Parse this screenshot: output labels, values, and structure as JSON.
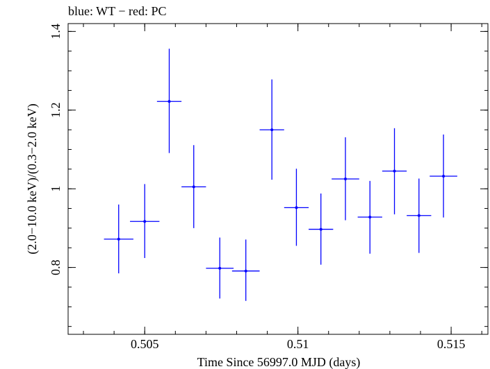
{
  "chart_data": {
    "type": "scatter",
    "title": "blue: WT − red: PC",
    "xlabel": "Time Since 56997.0 MJD (days)",
    "ylabel": "(2.0−10.0 keV)/(0.3−2.0 keV)",
    "xlim": [
      0.5025,
      0.5162
    ],
    "ylim": [
      0.63,
      1.42
    ],
    "xticks": [
      {
        "value": 0.505,
        "label": "0.505"
      },
      {
        "value": 0.51,
        "label": "0.51"
      },
      {
        "value": 0.515,
        "label": "0.515"
      }
    ],
    "yticks": [
      {
        "value": 0.8,
        "label": "0.8"
      },
      {
        "value": 1.0,
        "label": "1"
      },
      {
        "value": 1.2,
        "label": "1.2"
      },
      {
        "value": 1.4,
        "label": "1.4"
      }
    ],
    "x_minor_step": 0.001,
    "y_minor_step": 0.05,
    "grid": false,
    "series": [
      {
        "color": "#0000ff",
        "points": [
          {
            "x": 0.50415,
            "xerr": 0.00048,
            "y": 0.872,
            "yerr_low": 0.087,
            "yerr_high": 0.088
          },
          {
            "x": 0.505,
            "xerr": 0.00048,
            "y": 0.917,
            "yerr_low": 0.093,
            "yerr_high": 0.095
          },
          {
            "x": 0.5058,
            "xerr": 0.0004,
            "y": 1.222,
            "yerr_low": 0.131,
            "yerr_high": 0.134
          },
          {
            "x": 0.5066,
            "xerr": 0.0004,
            "y": 1.005,
            "yerr_low": 0.105,
            "yerr_high": 0.106
          },
          {
            "x": 0.50745,
            "xerr": 0.00045,
            "y": 0.798,
            "yerr_low": 0.077,
            "yerr_high": 0.078
          },
          {
            "x": 0.5083,
            "xerr": 0.00045,
            "y": 0.791,
            "yerr_low": 0.076,
            "yerr_high": 0.08
          },
          {
            "x": 0.50915,
            "xerr": 0.0004,
            "y": 1.15,
            "yerr_low": 0.127,
            "yerr_high": 0.128
          },
          {
            "x": 0.50995,
            "xerr": 0.0004,
            "y": 0.952,
            "yerr_low": 0.097,
            "yerr_high": 0.099
          },
          {
            "x": 0.51075,
            "xerr": 0.0004,
            "y": 0.897,
            "yerr_low": 0.09,
            "yerr_high": 0.091
          },
          {
            "x": 0.51155,
            "xerr": 0.00045,
            "y": 1.025,
            "yerr_low": 0.105,
            "yerr_high": 0.106
          },
          {
            "x": 0.51235,
            "xerr": 0.0004,
            "y": 0.928,
            "yerr_low": 0.093,
            "yerr_high": 0.092
          },
          {
            "x": 0.51315,
            "xerr": 0.0004,
            "y": 1.045,
            "yerr_low": 0.11,
            "yerr_high": 0.109
          },
          {
            "x": 0.51395,
            "xerr": 0.0004,
            "y": 0.932,
            "yerr_low": 0.095,
            "yerr_high": 0.094
          },
          {
            "x": 0.51475,
            "xerr": 0.00045,
            "y": 1.032,
            "yerr_low": 0.105,
            "yerr_high": 0.106
          }
        ]
      }
    ]
  }
}
